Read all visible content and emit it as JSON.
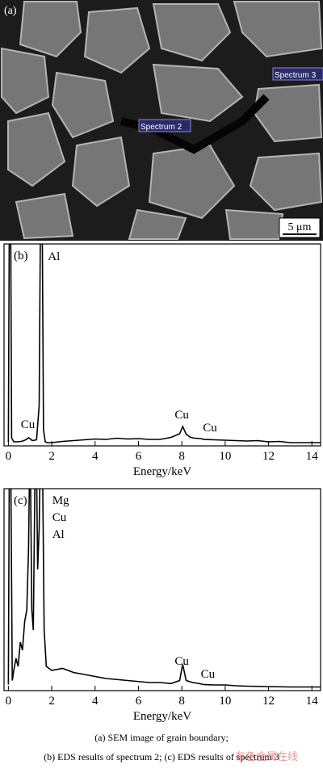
{
  "sem_image": {
    "panel_label": "(a)",
    "markers": [
      "Spectrum 2",
      "Spectrum 3"
    ],
    "scale_bar": "5 μm"
  },
  "chart_data": [
    {
      "type": "line",
      "panel_label": "(b)",
      "xlabel": "Energy/keV",
      "color": "#000000",
      "xlim": [
        -0.2,
        14.4
      ],
      "ylim": [
        0,
        100
      ],
      "xticks": [
        0,
        2,
        4,
        6,
        8,
        10,
        12,
        14
      ],
      "annotations": [
        "Al",
        "Cu",
        "Cu",
        "Cu"
      ],
      "x": [
        0,
        0.05,
        0.1,
        0.15,
        0.25,
        0.4,
        0.6,
        0.8,
        0.93,
        1.0,
        1.1,
        1.3,
        1.42,
        1.49,
        1.55,
        1.62,
        1.7,
        1.8,
        2.0,
        2.5,
        3,
        3.5,
        4,
        4.5,
        5,
        5.5,
        6,
        6.5,
        7,
        7.5,
        7.9,
        8.04,
        8.2,
        8.4,
        8.6,
        8.9,
        9,
        9.5,
        10,
        10.5,
        11,
        11.5,
        12,
        12.5,
        13,
        13.5,
        14,
        14.4
      ],
      "values": [
        2,
        130,
        130,
        4,
        2,
        2,
        2.2,
        3,
        4,
        3.6,
        2.6,
        3,
        20,
        130,
        130,
        8,
        2,
        1.6,
        1.6,
        2.2,
        2.6,
        3,
        3.4,
        3.2,
        3.8,
        3.4,
        3.6,
        3.2,
        3.2,
        4.2,
        6,
        9.6,
        5.8,
        4.2,
        3.8,
        3.6,
        3.2,
        3,
        2.8,
        2.6,
        2.4,
        2.6,
        2,
        2.2,
        1.6,
        1.6,
        1.6,
        1.6
      ]
    },
    {
      "type": "line",
      "panel_label": "(c)",
      "xlabel": "Energy/keV",
      "color": "#000000",
      "xlim": [
        -0.2,
        14.4
      ],
      "ylim": [
        0,
        100
      ],
      "xticks": [
        0,
        2,
        4,
        6,
        8,
        10,
        12,
        14
      ],
      "annotations": [
        "Mg",
        "Cu",
        "Al",
        "Cu",
        "Cu"
      ],
      "x": [
        0,
        0.05,
        0.1,
        0.18,
        0.25,
        0.35,
        0.45,
        0.55,
        0.65,
        0.75,
        0.85,
        0.93,
        1.0,
        1.08,
        1.15,
        1.22,
        1.28,
        1.35,
        1.42,
        1.49,
        1.56,
        1.65,
        1.75,
        2,
        2.5,
        3,
        3.5,
        4,
        4.5,
        5,
        5.5,
        6,
        6.5,
        7,
        7.5,
        7.9,
        8.04,
        8.2,
        8.5,
        8.8,
        9,
        9.5,
        10,
        10.5,
        11,
        12,
        13,
        14,
        14.4
      ],
      "values": [
        3,
        130,
        130,
        5,
        10,
        16,
        12,
        24,
        20,
        34,
        40,
        70,
        130,
        40,
        30,
        100,
        130,
        60,
        80,
        130,
        130,
        30,
        12,
        10,
        11,
        9,
        8,
        7,
        6,
        5.5,
        5,
        4.5,
        4,
        4,
        3.5,
        5,
        13,
        5,
        4,
        3.5,
        3,
        2.8,
        2.8,
        2.4,
        2.2,
        2,
        1.8,
        1.8,
        1.8
      ]
    }
  ],
  "caption": [
    "(a)  SEM  image  of  grain  boundary;",
    "(b) EDS results of spectrum 2; (c) EDS results of spectrum 3"
  ],
  "watermark": "有色金属在线"
}
